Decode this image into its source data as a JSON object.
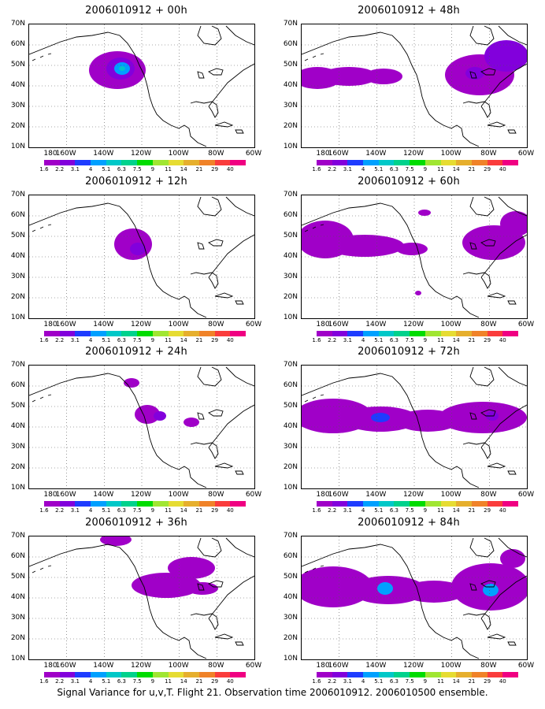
{
  "panels": [
    {
      "title": "2006010912 + 00h"
    },
    {
      "title": "2006010912 + 48h"
    },
    {
      "title": "2006010912 + 12h"
    },
    {
      "title": "2006010912 + 60h"
    },
    {
      "title": "2006010912 + 24h"
    },
    {
      "title": "2006010912 + 72h"
    },
    {
      "title": "2006010912 + 36h"
    },
    {
      "title": "2006010912 + 84h"
    }
  ],
  "lat_labels": [
    "70N",
    "60N",
    "50N",
    "40N",
    "30N",
    "20N",
    "10N"
  ],
  "lon_labels": [
    "180",
    "160W",
    "140W",
    "120W",
    "100W",
    "80W",
    "60W"
  ],
  "colorbar": {
    "labels": [
      "1.6",
      "2.2",
      "3.1",
      "4",
      "5.1",
      "6.3",
      "7.5",
      "9",
      "11",
      "14",
      "21",
      "29",
      "40"
    ],
    "colors": [
      "#a000c8",
      "#8200dc",
      "#1e3cff",
      "#00a0ff",
      "#00c8c8",
      "#00d28c",
      "#00dc00",
      "#a0e632",
      "#e6dc32",
      "#e6af2d",
      "#f08228",
      "#fa3c3c",
      "#f00082"
    ]
  },
  "footer": "Signal Variance for u,v,T. Flight 21. Observation time 2006010912. 2006010500 ensemble."
}
